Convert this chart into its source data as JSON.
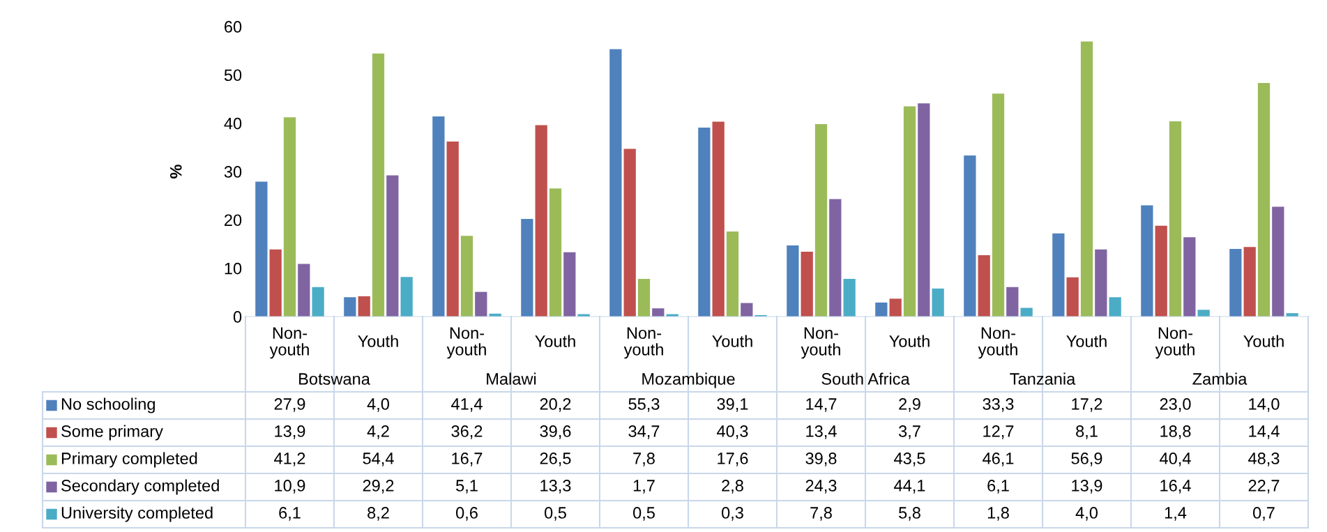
{
  "chart_data": {
    "type": "bar",
    "ylabel": "%",
    "categories": [
      "Non-youth",
      "Youth",
      "Non-youth",
      "Youth",
      "Non-youth",
      "Youth",
      "Non-youth",
      "Youth",
      "Non-youth",
      "Youth",
      "Non-youth",
      "Youth"
    ],
    "annotations": [
      "Botswana",
      "Malawi",
      "Mozambique",
      "South Africa",
      "Tanzania",
      "Zambia"
    ],
    "series": [
      {
        "name": "No schooling",
        "color": "#4f81bd",
        "values": [
          27.9,
          4.0,
          41.4,
          20.2,
          55.3,
          39.1,
          14.7,
          2.9,
          33.3,
          17.2,
          23.0,
          14.0
        ],
        "value_labels": [
          "27,9",
          "4,0",
          "41,4",
          "20,2",
          "55,3",
          "39,1",
          "14,7",
          "2,9",
          "33,3",
          "17,2",
          "23,0",
          "14,0"
        ]
      },
      {
        "name": "Some primary",
        "color": "#c0504d",
        "values": [
          13.9,
          4.2,
          36.2,
          39.6,
          34.7,
          40.3,
          13.4,
          3.7,
          12.7,
          8.1,
          18.8,
          14.4
        ],
        "value_labels": [
          "13,9",
          "4,2",
          "36,2",
          "39,6",
          "34,7",
          "40,3",
          "13,4",
          "3,7",
          "12,7",
          "8,1",
          "18,8",
          "14,4"
        ]
      },
      {
        "name": "Primary completed",
        "color": "#9bbb59",
        "values": [
          41.2,
          54.4,
          16.7,
          26.5,
          7.8,
          17.6,
          39.8,
          43.5,
          46.1,
          56.9,
          40.4,
          48.3
        ],
        "value_labels": [
          "41,2",
          "54,4",
          "16,7",
          "26,5",
          "7,8",
          "17,6",
          "39,8",
          "43,5",
          "46,1",
          "56,9",
          "40,4",
          "48,3"
        ]
      },
      {
        "name": "Secondary completed",
        "color": "#8064a2",
        "values": [
          10.9,
          29.2,
          5.1,
          13.3,
          1.7,
          2.8,
          24.3,
          44.1,
          6.1,
          13.9,
          16.4,
          22.7
        ],
        "value_labels": [
          "10,9",
          "29,2",
          "5,1",
          "13,3",
          "1,7",
          "2,8",
          "24,3",
          "44,1",
          "6,1",
          "13,9",
          "16,4",
          "22,7"
        ]
      },
      {
        "name": "University completed",
        "color": "#4bacc6",
        "values": [
          6.1,
          8.2,
          0.6,
          0.5,
          0.5,
          0.3,
          7.8,
          5.8,
          1.8,
          4.0,
          1.4,
          0.7
        ],
        "value_labels": [
          "6,1",
          "8,2",
          "0,6",
          "0,5",
          "0,5",
          "0,3",
          "7,8",
          "5,8",
          "1,8",
          "4,0",
          "1,4",
          "0,7"
        ]
      }
    ],
    "ylim": [
      0,
      60
    ],
    "yticks": [
      0,
      10,
      20,
      30,
      40,
      50,
      60
    ],
    "grid": false,
    "legend": "bottom"
  }
}
